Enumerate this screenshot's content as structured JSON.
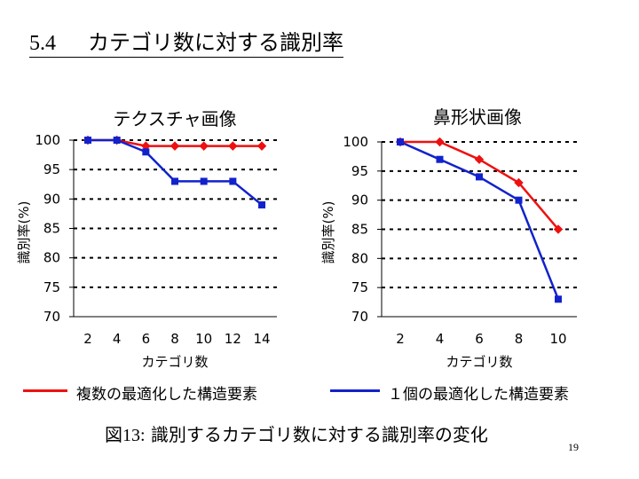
{
  "slide": {
    "section_number": "5.4",
    "title": "カテゴリ数に対する識別率",
    "figure_label": "図13:",
    "figure_caption": "識別するカテゴリ数に対する識別率の変化",
    "page_number": "19"
  },
  "legend": [
    {
      "name": "複数の最適化した構造要素",
      "color": "#ee1111",
      "marker": "diamond"
    },
    {
      "name": "１個の最適化した構造要素",
      "color": "#1122cc",
      "marker": "square"
    }
  ],
  "colors": {
    "red_series": "#ee1111",
    "blue_series": "#1122cc",
    "grid": "#000000"
  },
  "chart_data": [
    {
      "type": "line",
      "title": "テクスチャ画像",
      "xlabel": "カテゴリ数",
      "ylabel": "識別率(%)",
      "x": [
        2,
        4,
        6,
        8,
        10,
        12,
        14
      ],
      "xticks": [
        "2",
        "4",
        "6",
        "8",
        "10",
        "12",
        "14"
      ],
      "yticks": [
        "100",
        "95",
        "90",
        "85",
        "80",
        "75",
        "70"
      ],
      "ylim": [
        70,
        100
      ],
      "grid": "horizontal-dashed",
      "series": [
        {
          "name": "複数の最適化した構造要素",
          "values": [
            100,
            100,
            99,
            99,
            99,
            99,
            99
          ]
        },
        {
          "name": "１個の最適化した構造要素",
          "values": [
            100,
            100,
            98,
            93,
            93,
            93,
            89
          ]
        }
      ]
    },
    {
      "type": "line",
      "title": "鼻形状画像",
      "xlabel": "カテゴリ数",
      "ylabel": "識別率(%)",
      "x": [
        2,
        4,
        6,
        8,
        10
      ],
      "xticks": [
        "2",
        "4",
        "6",
        "8",
        "10"
      ],
      "yticks": [
        "100",
        "95",
        "90",
        "85",
        "80",
        "75",
        "70"
      ],
      "ylim": [
        70,
        100
      ],
      "grid": "horizontal-dashed",
      "series": [
        {
          "name": "複数の最適化した構造要素",
          "values": [
            100,
            100,
            97,
            93,
            85
          ]
        },
        {
          "name": "１個の最適化した構造要素",
          "values": [
            100,
            97,
            94,
            90,
            73
          ]
        }
      ]
    }
  ]
}
